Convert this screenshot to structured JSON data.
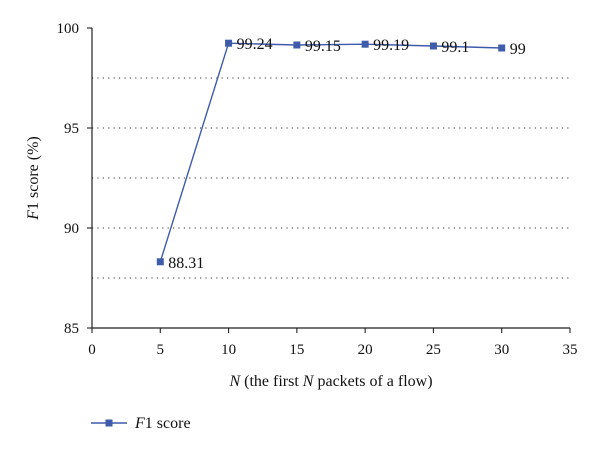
{
  "chart_data": {
    "type": "line",
    "xlabel": {
      "prefix_italic": "N",
      "middle": " (the first ",
      "middle_italic": "N",
      "suffix": " packets of a flow)"
    },
    "ylabel": {
      "prefix_italic": "F",
      "suffix": "1 score (%)"
    },
    "xlim": [
      0,
      35
    ],
    "ylim": [
      85,
      100
    ],
    "x_ticks": [
      0,
      5,
      10,
      15,
      20,
      25,
      30,
      35
    ],
    "y_ticks": [
      85,
      90,
      95,
      100
    ],
    "gridlines_y": [
      87.5,
      90,
      92.5,
      95,
      97.5
    ],
    "grid": "horizontal dotted",
    "legend_position": "bottom-left",
    "series": [
      {
        "name": "F1 score",
        "name_italic": "F",
        "name_rest": "1 score",
        "color": "#3f5bab",
        "marker": "square",
        "x": [
          5,
          10,
          15,
          20,
          25,
          30
        ],
        "y": [
          88.31,
          99.24,
          99.15,
          99.19,
          99.1,
          99
        ],
        "labels": [
          "88.31",
          "99.24",
          "99.15",
          "99.19",
          "99.1",
          "99"
        ]
      }
    ]
  }
}
